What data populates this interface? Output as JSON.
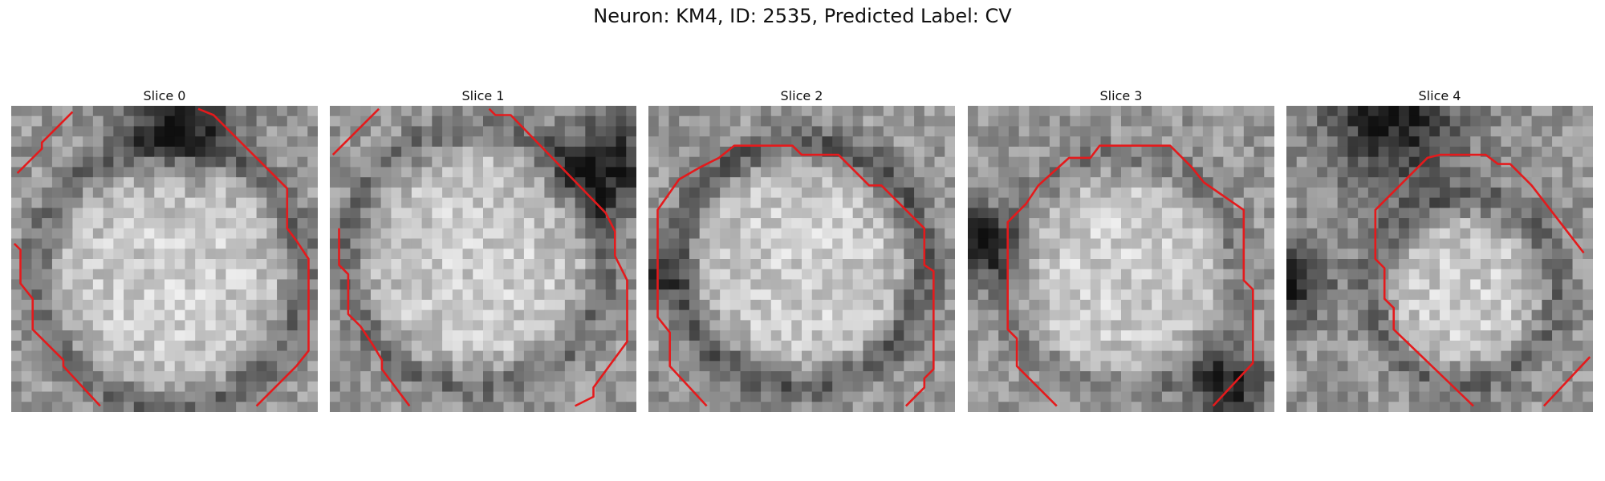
{
  "figure": {
    "title": "Neuron: KM4, ID: 2535, Predicted Label: CV"
  },
  "panels": [
    {
      "title": "Slice 0"
    },
    {
      "title": "Slice 1"
    },
    {
      "title": "Slice 2"
    },
    {
      "title": "Slice 3"
    },
    {
      "title": "Slice 4"
    }
  ],
  "colors": {
    "contour": "#e41a1c",
    "colormap": "grayscale"
  }
}
